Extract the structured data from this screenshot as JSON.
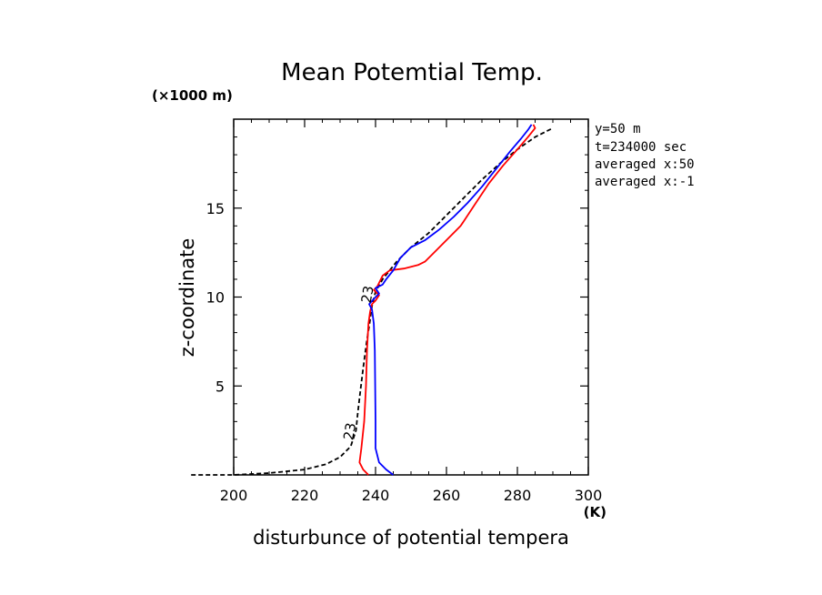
{
  "chart_data": {
    "type": "line",
    "title": "Mean Potemtial Temp.",
    "xlabel": "disturbunce of potential tempera",
    "ylabel": "z-coordinate",
    "x_unit": "(K)",
    "y_unit": "(×1000 m)",
    "xlim": [
      200,
      300
    ],
    "ylim": [
      0,
      20
    ],
    "x_ticks": [
      200,
      220,
      240,
      260,
      280,
      300
    ],
    "y_ticks": [
      5,
      10,
      15
    ],
    "grid": false,
    "annotations": [
      "y=50 m",
      "t=234000 sec",
      "averaged  x:50",
      "averaged  x:-1"
    ],
    "contour_labels": [
      {
        "text": "23",
        "x": 234,
        "y": 2.4
      },
      {
        "text": "23",
        "x": 239,
        "y": 10.1
      }
    ],
    "series": [
      {
        "name": "dashed-black",
        "color": "#000000",
        "style": "dashed",
        "x": [
          188,
          200,
          210,
          220,
          226,
          230,
          233,
          234.5,
          235,
          235.6,
          236.5,
          237.5,
          238.3,
          239,
          240,
          242,
          246,
          250,
          255,
          260,
          265,
          270,
          275,
          280,
          285,
          290
        ],
        "y": [
          0,
          0,
          0.1,
          0.3,
          0.6,
          1.0,
          1.6,
          2.5,
          3.5,
          4.5,
          6.0,
          7.5,
          8.5,
          9.5,
          10.3,
          11.0,
          12.0,
          12.8,
          13.6,
          14.6,
          15.6,
          16.6,
          17.5,
          18.3,
          19.0,
          19.5
        ]
      },
      {
        "name": "red",
        "color": "#ff0000",
        "style": "solid",
        "x": [
          238,
          236.5,
          235.5,
          236,
          236.8,
          237.3,
          237.6,
          238,
          238.5,
          239,
          240,
          241,
          239.5,
          240.5,
          241,
          242,
          244,
          248,
          252,
          254,
          256,
          259,
          264,
          268,
          272,
          276,
          280,
          283,
          285,
          284.5
        ],
        "y": [
          0,
          0.3,
          0.7,
          1.5,
          3,
          5,
          7,
          8.5,
          9.2,
          9.6,
          9.8,
          10.1,
          10.4,
          10.6,
          10.8,
          11.2,
          11.5,
          11.6,
          11.8,
          12.0,
          12.4,
          13.0,
          14.0,
          15.2,
          16.4,
          17.4,
          18.3,
          19.0,
          19.5,
          19.7
        ]
      },
      {
        "name": "blue",
        "color": "#0000ff",
        "style": "solid",
        "x": [
          245,
          243,
          241,
          240,
          240,
          239.9,
          239.8,
          239.5,
          239,
          238.2,
          239.5,
          241,
          240,
          242,
          243,
          245,
          247,
          250,
          254,
          258,
          262,
          266,
          270,
          274,
          278,
          281,
          283,
          284
        ],
        "y": [
          0,
          0.3,
          0.7,
          1.5,
          3,
          5,
          7,
          8.5,
          9.3,
          9.6,
          9.9,
          10.2,
          10.5,
          10.7,
          11.0,
          11.5,
          12.2,
          12.8,
          13.2,
          13.8,
          14.5,
          15.3,
          16.2,
          17.2,
          18.2,
          18.9,
          19.4,
          19.7
        ]
      }
    ]
  }
}
